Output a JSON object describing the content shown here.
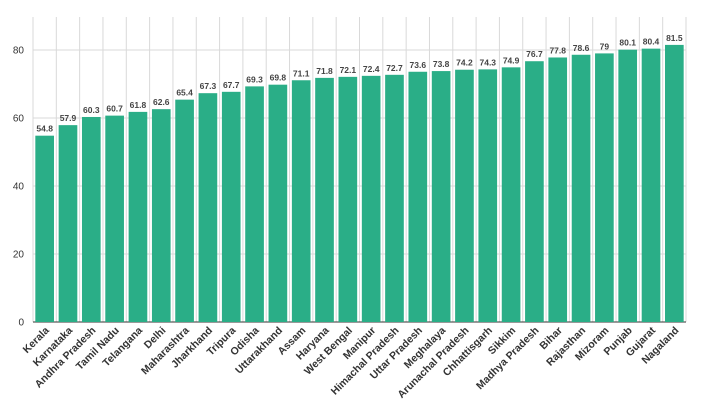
{
  "chart_data": {
    "type": "bar",
    "title": "",
    "xlabel": "",
    "ylabel": "",
    "categories": [
      "Kerala",
      "Karnataka",
      "Andhra Pradesh",
      "Tamil Nadu",
      "Telangana",
      "Delhi",
      "Maharashtra",
      "Jharkhand",
      "Tripura",
      "Odisha",
      "Uttarakhand",
      "Assam",
      "Haryana",
      "West Bengal",
      "Manipur",
      "Himachal Pradesh",
      "Uttar Pradesh",
      "Meghalaya",
      "Arunachal Pradesh",
      "Chhattisgarh",
      "Sikkim",
      "Madhya Pradesh",
      "Bihar",
      "Rajasthan",
      "Mizoram",
      "Punjab",
      "Gujarat",
      "Nagaland"
    ],
    "values": [
      54.8,
      57.9,
      60.3,
      60.7,
      61.8,
      62.6,
      65.4,
      67.3,
      67.7,
      69.3,
      69.8,
      71.1,
      71.8,
      72.1,
      72.4,
      72.7,
      73.6,
      73.8,
      74.2,
      74.3,
      74.9,
      76.7,
      77.8,
      78.6,
      79,
      80.1,
      80.4,
      81.5
    ],
    "value_labels": [
      "54.8",
      "57.9",
      "60.3",
      "60.7",
      "61.8",
      "62.6",
      "65.4",
      "67.3",
      "67.7",
      "69.3",
      "69.8",
      "71.1",
      "71.8",
      "72.1",
      "72.4",
      "72.7",
      "73.6",
      "73.8",
      "74.2",
      "74.3",
      "74.9",
      "76.7",
      "77.8",
      "78.6",
      "79",
      "80.1",
      "80.4",
      "81.5"
    ],
    "yticks": [
      0,
      20,
      40,
      60,
      80
    ],
    "ytick_labels": [
      "0",
      "20",
      "40",
      "60",
      "80"
    ],
    "ylim": [
      0,
      90
    ],
    "grid": true,
    "bar_color": "#2aae87"
  }
}
